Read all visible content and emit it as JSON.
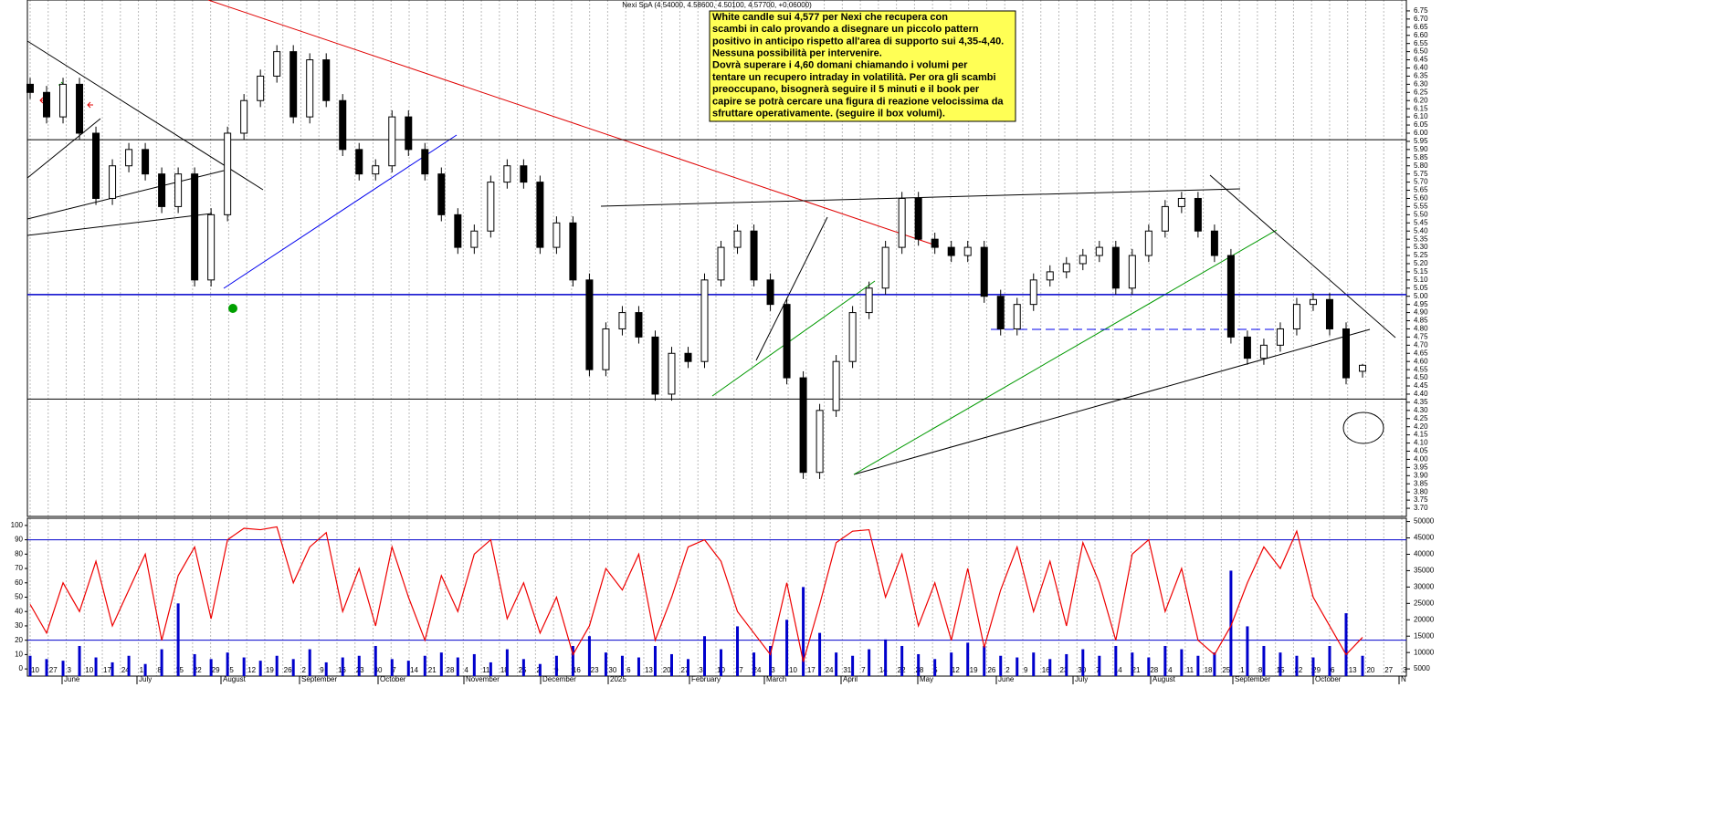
{
  "chart_data": {
    "type": "candlestick",
    "title": "Nexi SpA (4.54000, 4.58600, 4.50100, 4.57700, +0.06000)",
    "annotation": [
      "White candle sui 4,577 per Nexi che recupera con",
      "scambi in calo provando a disegnare un piccolo pattern",
      "positivo in anticipo rispetto  all'area di supporto sui 4,35-4,40.",
      "Nessuna possibilità per intervenire.",
      "Dovrà superare i 4,60 domani chiamando i volumi per",
      "tentare un recupero intraday in volatilità. Per ora gli scambi",
      "preoccupano, bisognerà seguire il 5 minuti e il book per",
      "capire se potrà cercare una figura di reazione velocissima  da",
      "sfruttare operativamente. (seguire il box volumi)."
    ],
    "open": [
      6.3,
      6.25,
      6.1,
      6.3,
      6.0,
      5.6,
      5.8,
      5.9,
      5.75,
      5.55,
      5.75,
      5.1,
      5.5,
      6.0,
      6.2,
      6.35,
      6.5,
      6.1,
      6.45,
      6.2,
      5.9,
      5.75,
      5.8,
      6.1,
      5.9,
      5.75,
      5.5,
      5.3,
      5.4,
      5.7,
      5.8,
      5.7,
      5.3,
      5.45,
      5.1,
      4.55,
      4.8,
      4.9,
      4.75,
      4.4,
      4.65,
      4.6,
      5.1,
      5.3,
      5.4,
      5.1,
      4.95,
      4.5,
      3.92,
      4.3,
      4.6,
      4.9,
      5.05,
      5.3,
      5.6,
      5.35,
      5.3,
      5.25,
      5.3,
      5.0,
      4.8,
      4.95,
      5.1,
      5.15,
      5.2,
      5.25,
      5.3,
      5.05,
      5.25,
      5.4,
      5.55,
      5.6,
      5.4,
      5.25,
      4.75,
      4.62,
      4.7,
      4.8,
      4.95,
      4.98,
      4.8,
      4.54
    ],
    "high": [
      6.34,
      6.29,
      6.34,
      6.34,
      6.04,
      5.84,
      5.94,
      5.94,
      5.79,
      5.79,
      5.79,
      5.54,
      6.04,
      6.24,
      6.39,
      6.54,
      6.54,
      6.49,
      6.49,
      6.24,
      5.94,
      5.84,
      6.14,
      6.14,
      5.94,
      5.79,
      5.54,
      5.44,
      5.74,
      5.84,
      5.84,
      5.74,
      5.49,
      5.49,
      5.14,
      4.84,
      4.94,
      4.94,
      4.79,
      4.69,
      4.69,
      5.14,
      5.34,
      5.44,
      5.44,
      5.14,
      4.99,
      4.54,
      4.34,
      4.64,
      4.94,
      5.09,
      5.34,
      5.64,
      5.64,
      5.39,
      5.34,
      5.34,
      5.34,
      5.04,
      4.99,
      5.14,
      5.19,
      5.24,
      5.29,
      5.34,
      5.34,
      5.29,
      5.44,
      5.59,
      5.64,
      5.64,
      5.44,
      5.29,
      4.79,
      4.74,
      4.84,
      4.99,
      5.02,
      5.02,
      4.84,
      4.586
    ],
    "low": [
      6.21,
      6.06,
      6.06,
      5.96,
      5.56,
      5.56,
      5.76,
      5.71,
      5.51,
      5.51,
      5.06,
      5.06,
      5.46,
      5.96,
      6.16,
      6.31,
      6.06,
      6.06,
      6.16,
      5.86,
      5.71,
      5.71,
      5.76,
      5.86,
      5.71,
      5.46,
      5.26,
      5.26,
      5.36,
      5.66,
      5.66,
      5.26,
      5.26,
      5.06,
      4.51,
      4.51,
      4.76,
      4.71,
      4.36,
      4.36,
      4.56,
      4.56,
      5.06,
      5.26,
      5.06,
      4.91,
      4.46,
      3.88,
      3.88,
      4.26,
      4.56,
      4.86,
      5.01,
      5.26,
      5.31,
      5.26,
      5.21,
      5.21,
      4.96,
      4.76,
      4.76,
      4.91,
      5.06,
      5.11,
      5.16,
      5.21,
      5.01,
      5.01,
      5.21,
      5.36,
      5.51,
      5.36,
      5.21,
      4.71,
      4.58,
      4.58,
      4.66,
      4.76,
      4.91,
      4.76,
      4.46,
      4.501
    ],
    "close": [
      6.25,
      6.1,
      6.3,
      6.0,
      5.6,
      5.8,
      5.9,
      5.75,
      5.55,
      5.75,
      5.1,
      5.5,
      6.0,
      6.2,
      6.35,
      6.5,
      6.1,
      6.45,
      6.2,
      5.9,
      5.75,
      5.8,
      6.1,
      5.9,
      5.75,
      5.5,
      5.3,
      5.4,
      5.7,
      5.8,
      5.7,
      5.3,
      5.45,
      5.1,
      4.55,
      4.8,
      4.9,
      4.75,
      4.4,
      4.65,
      4.6,
      5.1,
      5.3,
      5.4,
      5.1,
      4.95,
      4.5,
      3.92,
      4.3,
      4.6,
      4.9,
      5.05,
      5.3,
      5.6,
      5.35,
      5.3,
      5.25,
      5.3,
      5.0,
      4.8,
      4.95,
      5.1,
      5.15,
      5.2,
      5.25,
      5.3,
      5.05,
      5.25,
      5.4,
      5.55,
      5.6,
      5.4,
      5.25,
      4.75,
      4.62,
      4.7,
      4.8,
      4.95,
      4.98,
      4.8,
      4.5,
      4.577
    ],
    "levels": [
      {
        "value": 5.96,
        "color": "#000000"
      },
      {
        "value": 5.01,
        "color": "#0000cc"
      },
      {
        "value": 4.37,
        "color": "#000000"
      }
    ],
    "ylim": [
      3.65,
      6.8
    ],
    "yticks": [
      {
        "value": 3.7,
        "label": "3.70"
      },
      {
        "value": 3.75,
        "label": "3.75"
      },
      {
        "value": 3.8,
        "label": "3.80"
      },
      {
        "value": 3.85,
        "label": "3.85"
      },
      {
        "value": 3.9,
        "label": "3.90"
      },
      {
        "value": 3.95,
        "label": "3.95"
      },
      {
        "value": 4.0,
        "label": "4.00"
      },
      {
        "value": 4.05,
        "label": "4.05"
      },
      {
        "value": 4.1,
        "label": "4.10"
      },
      {
        "value": 4.15,
        "label": "4.15"
      },
      {
        "value": 4.2,
        "label": "4.20"
      },
      {
        "value": 4.25,
        "label": "4.25"
      },
      {
        "value": 4.3,
        "label": "4.30"
      },
      {
        "value": 4.35,
        "label": "4.35"
      },
      {
        "value": 4.4,
        "label": "4.40"
      },
      {
        "value": 4.45,
        "label": "4.45"
      },
      {
        "value": 4.5,
        "label": "4.50"
      },
      {
        "value": 4.55,
        "label": "4.55"
      },
      {
        "value": 4.6,
        "label": "4.60"
      },
      {
        "value": 4.65,
        "label": "4.65"
      },
      {
        "value": 4.7,
        "label": "4.70"
      },
      {
        "value": 4.75,
        "label": "4.75"
      },
      {
        "value": 4.8,
        "label": "4.80"
      },
      {
        "value": 4.85,
        "label": "4.85"
      },
      {
        "value": 4.9,
        "label": "4.90"
      },
      {
        "value": 4.95,
        "label": "4.95"
      },
      {
        "value": 5.0,
        "label": "5.00"
      },
      {
        "value": 5.05,
        "label": "5.05"
      },
      {
        "value": 5.1,
        "label": "5.10"
      },
      {
        "value": 5.15,
        "label": "5.15"
      },
      {
        "value": 5.2,
        "label": "5.20"
      },
      {
        "value": 5.25,
        "label": "5.25"
      },
      {
        "value": 5.3,
        "label": "5.30"
      },
      {
        "value": 5.35,
        "label": "5.35"
      },
      {
        "value": 5.4,
        "label": "5.40"
      },
      {
        "value": 5.45,
        "label": "5.45"
      },
      {
        "value": 5.5,
        "label": "5.50"
      },
      {
        "value": 5.55,
        "label": "5.55"
      },
      {
        "value": 5.6,
        "label": "5.60"
      },
      {
        "value": 5.65,
        "label": "5.65"
      },
      {
        "value": 5.7,
        "label": "5.70"
      },
      {
        "value": 5.75,
        "label": "5.75"
      },
      {
        "value": 5.8,
        "label": "5.80"
      },
      {
        "value": 5.85,
        "label": "5.85"
      },
      {
        "value": 5.9,
        "label": "5.90"
      },
      {
        "value": 5.95,
        "label": "5.95"
      },
      {
        "value": 6.0,
        "label": "6.00"
      },
      {
        "value": 6.05,
        "label": "6.05"
      },
      {
        "value": 6.1,
        "label": "6.10"
      },
      {
        "value": 6.15,
        "label": "6.15"
      },
      {
        "value": 6.2,
        "label": "6.20"
      },
      {
        "value": 6.25,
        "label": "6.25"
      },
      {
        "value": 6.3,
        "label": "6.30"
      },
      {
        "value": 6.35,
        "label": "6.35"
      },
      {
        "value": 6.4,
        "label": "6.40"
      },
      {
        "value": 6.45,
        "label": "6.45"
      },
      {
        "value": 6.5,
        "label": "6.50"
      },
      {
        "value": 6.55,
        "label": "6.55"
      },
      {
        "value": 6.6,
        "label": "6.60"
      },
      {
        "value": 6.65,
        "label": "6.65"
      },
      {
        "value": 6.7,
        "label": "6.70"
      },
      {
        "value": 6.75,
        "label": "6.75"
      }
    ],
    "oscillator": {
      "color": "#ee0000",
      "values": [
        45,
        25,
        60,
        40,
        75,
        30,
        55,
        80,
        20,
        65,
        85,
        35,
        90,
        98,
        97,
        99,
        60,
        85,
        95,
        40,
        70,
        30,
        85,
        50,
        20,
        65,
        40,
        80,
        90,
        35,
        60,
        25,
        50,
        10,
        30,
        70,
        55,
        80,
        20,
        50,
        85,
        90,
        75,
        40,
        25,
        10,
        60,
        5,
        45,
        88,
        96,
        97,
        50,
        80,
        30,
        60,
        20,
        70,
        15,
        55,
        85,
        40,
        75,
        30,
        88,
        60,
        20,
        80,
        90,
        40,
        70,
        20,
        10,
        30,
        60,
        85,
        70,
        96,
        50,
        30,
        10,
        22
      ]
    },
    "oscillator_levels": [
      90,
      20
    ],
    "oscillator_ylim": [
      -5,
      105
    ],
    "oscillator_ticks": [
      0,
      10,
      20,
      30,
      40,
      50,
      60,
      70,
      80,
      90,
      100
    ],
    "volume": {
      "color": "#0000cc",
      "axis": "y2",
      "values": [
        9000,
        8000,
        7500,
        12000,
        8500,
        7000,
        9000,
        6500,
        11000,
        25000,
        9500,
        8000,
        10000,
        8500,
        7500,
        9000,
        8000,
        11000,
        7000,
        8500,
        9000,
        12000,
        8000,
        7500,
        9000,
        10000,
        8500,
        9500,
        7000,
        11000,
        8000,
        6500,
        9000,
        12000,
        15000,
        10000,
        9000,
        8500,
        12000,
        9500,
        8000,
        15000,
        11000,
        18000,
        10000,
        12000,
        20000,
        30000,
        16000,
        10000,
        9000,
        11000,
        14000,
        12000,
        9500,
        8000,
        10000,
        13000,
        12000,
        9000,
        8500,
        10000,
        8000,
        9500,
        11000,
        9000,
        12000,
        10000,
        8500,
        12000,
        11000,
        9000,
        10000,
        35000,
        18000,
        12000,
        10000,
        9000,
        8500,
        12000,
        22000,
        9000
      ]
    },
    "y2lim": [
      2800,
      51000
    ],
    "y2ticks": [
      5000,
      10000,
      15000,
      20000,
      25000,
      30000,
      35000,
      40000,
      45000,
      50000
    ],
    "x_day_labels": [
      "10",
      "27",
      "3",
      "10",
      "17",
      "24",
      "1",
      "8",
      "15",
      "22",
      "29",
      "5",
      "12",
      "19",
      "26",
      "2",
      "9",
      "16",
      "23",
      "30",
      "7",
      "14",
      "21",
      "28",
      "4",
      "11",
      "18",
      "25",
      "2",
      "9",
      "16",
      "23",
      "30",
      "6",
      "13",
      "20",
      "27",
      "3",
      "10",
      "17",
      "24",
      "3",
      "10",
      "17",
      "24",
      "31",
      "7",
      "14",
      "22",
      "28",
      "5",
      "12",
      "19",
      "26",
      "2",
      "9",
      "16",
      "23",
      "30",
      "7",
      "14",
      "21",
      "28",
      "4",
      "11",
      "18",
      "25",
      "1",
      "8",
      "15",
      "22",
      "29",
      "6",
      "13",
      "20",
      "27",
      "3"
    ],
    "x_month_labels": [
      "June",
      "July",
      "August",
      "September",
      "October",
      "November",
      "December",
      "2025",
      "February",
      "March",
      "April",
      "May",
      "June",
      "July",
      "August",
      "September",
      "October",
      "N"
    ]
  }
}
